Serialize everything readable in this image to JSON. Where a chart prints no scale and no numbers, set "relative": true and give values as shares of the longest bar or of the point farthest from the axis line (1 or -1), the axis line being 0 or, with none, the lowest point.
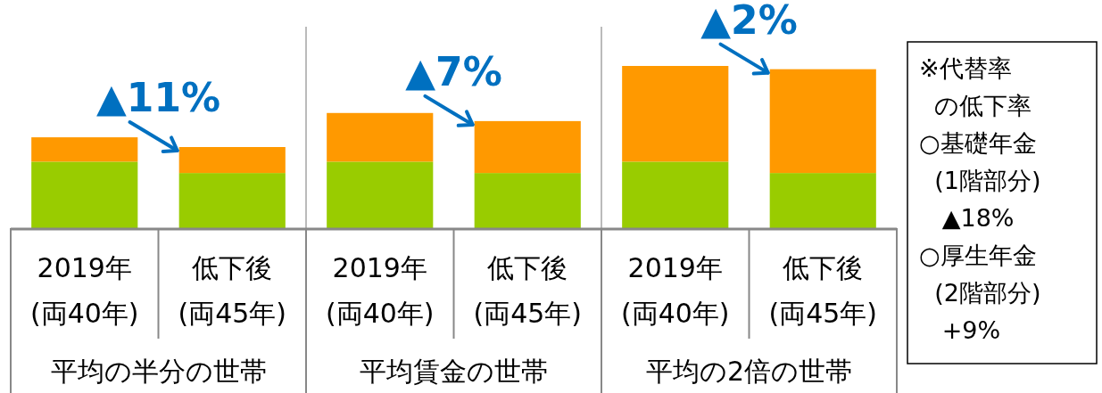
{
  "chart_data": {
    "type": "bar",
    "stacked": true,
    "relative": true,
    "categories": [
      "2019年\n(両40年)",
      "低下後\n(両45年)",
      "2019年\n(両40年)",
      "低下後\n(両45年)",
      "2019年\n(両40年)",
      "低下後\n(両45年)"
    ],
    "series": [
      {
        "color": "#99cc00",
        "values": [
          0.41,
          0.34,
          0.41,
          0.34,
          0.41,
          0.34
        ]
      },
      {
        "color": "#ff9900",
        "values": [
          0.15,
          0.16,
          0.3,
          0.32,
          0.59,
          0.64
        ]
      }
    ],
    "annotations": [
      "▲11%",
      "▲7%",
      "▲2%",
      "平均の半分の世帯",
      "平均賃金の世帯",
      "平均の2倍の世帯",
      "※代替率",
      "  の低下率",
      "○基礎年金",
      "  (1階部分)",
      "   ▲18%",
      "○厚生年金",
      "  (2階部分)",
      "   +9%"
    ]
  }
}
